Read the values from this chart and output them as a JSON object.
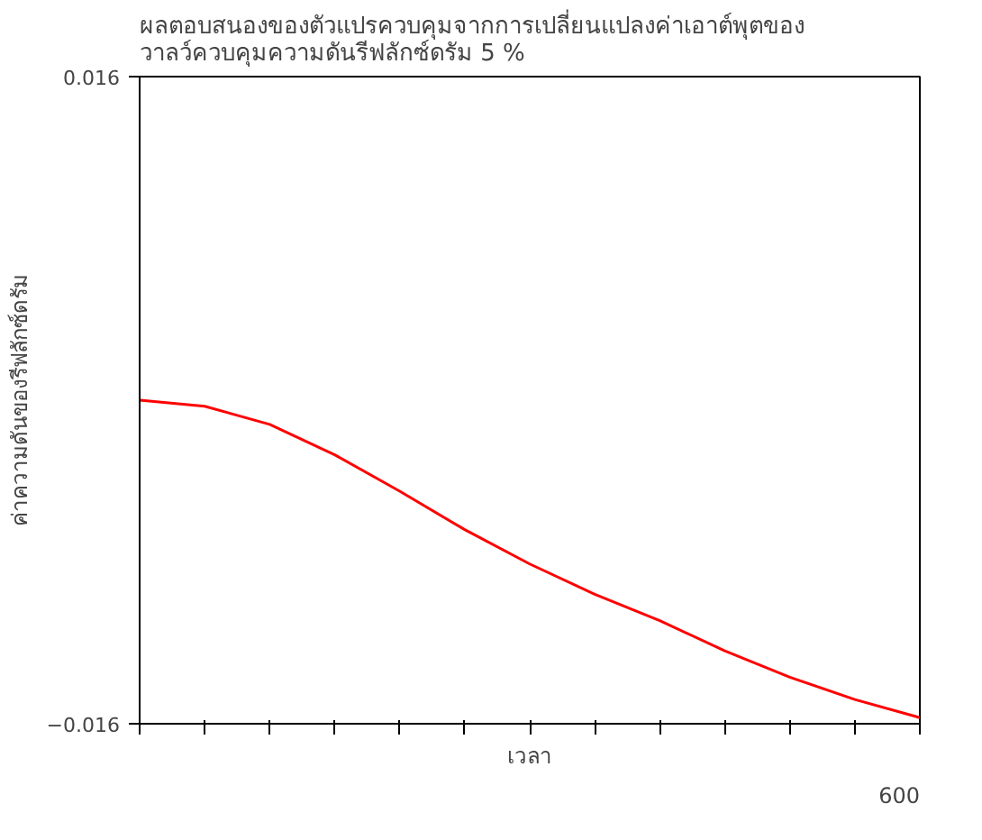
{
  "chart_data": {
    "type": "line",
    "title": "ผลตอบสนองของตัวแปรควบคุมจากการเปลี่ยนแปลงค่าเอาต์พุตของ\nวาลว์ควบคุมความดันรีฟลักซ์ดรัม 5 %",
    "xlabel": "เวลา",
    "ylabel": "ค่าความดันของรีฟลักซ์ดรัม",
    "categories": [
      null,
      null,
      null,
      null,
      null,
      null,
      null,
      null,
      null,
      null,
      null,
      null,
      null
    ],
    "series": [
      {
        "color": "#ff0000",
        "values": [
          0,
          -0.0003,
          -0.0012,
          -0.0027,
          -0.0045,
          -0.0064,
          -0.0081,
          -0.0096,
          -0.0109,
          -0.0124,
          -0.0137,
          -0.0148,
          -0.0157
        ]
      }
    ],
    "ylim": [
      -0.016,
      0.016
    ],
    "yticks": [
      -0.016,
      0.016
    ],
    "annotations": [
      "600"
    ],
    "grid": false,
    "marker": "none",
    "line_style": "solid"
  }
}
